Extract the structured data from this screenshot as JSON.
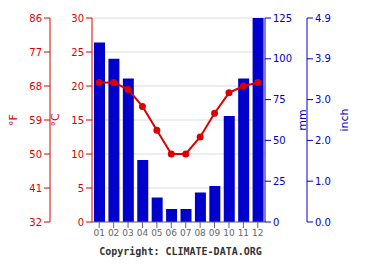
{
  "chart_data": {
    "type": "bar",
    "categories": [
      "01",
      "02",
      "03",
      "04",
      "05",
      "06",
      "07",
      "08",
      "09",
      "10",
      "11",
      "12"
    ],
    "series": [
      {
        "type": "bar",
        "color": "#0000cc",
        "axis": "y2",
        "values": [
          110,
          100,
          88,
          38,
          15,
          8,
          8,
          18,
          22,
          65,
          88,
          125
        ]
      },
      {
        "type": "line",
        "color": "#dd0000",
        "marker": "o",
        "line_style": "solid",
        "values": [
          20.5,
          20.5,
          19.5,
          17.0,
          13.5,
          10.0,
          10.0,
          12.5,
          16.0,
          19.0,
          20.0,
          20.5
        ]
      }
    ],
    "ylabel": "°C",
    "ylim": [
      0,
      30
    ],
    "yticks": [
      0,
      5,
      10,
      15,
      20,
      25,
      30
    ],
    "y2label": "mm",
    "y2lim": [
      0,
      125
    ],
    "y2ticks": [
      0,
      25,
      50,
      75,
      100,
      125
    ],
    "y3label": "°F",
    "y3lim": [
      0,
      30
    ],
    "y3ticks": [
      {
        "value": 0,
        "label": "32"
      },
      {
        "value": 5,
        "label": "41"
      },
      {
        "value": 10,
        "label": "50"
      },
      {
        "value": 15,
        "label": "59"
      },
      {
        "value": 20,
        "label": "68"
      },
      {
        "value": 25,
        "label": "77"
      },
      {
        "value": 30,
        "label": "86"
      }
    ],
    "y4label": "inch",
    "y4lim": [
      0,
      125
    ],
    "y4ticks": [
      {
        "value": 0,
        "label": "0.0"
      },
      {
        "value": 25,
        "label": "1.0"
      },
      {
        "value": 50,
        "label": "2.0"
      },
      {
        "value": 75,
        "label": "3.0"
      },
      {
        "value": 100,
        "label": "3.9"
      },
      {
        "value": 125,
        "label": "4.9"
      }
    ],
    "grid": true,
    "annotations": [
      "Copyright: CLIMATE-DATA.ORG"
    ]
  }
}
